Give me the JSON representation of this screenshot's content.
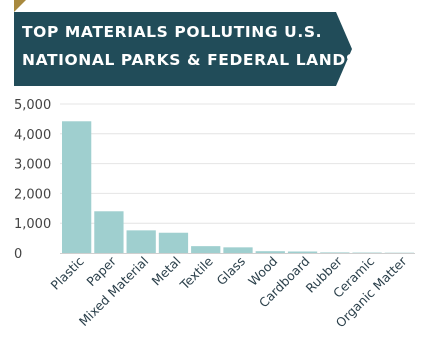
{
  "colors": {
    "banner": "#214c59",
    "corner": "#a8893e",
    "bar": "#9fcfcf",
    "grid": "#e4e4e4",
    "axis": "#cfcfcf"
  },
  "chart_data": {
    "type": "bar",
    "title_lines": [
      "TOP MATERIALS POLLUTING U.S.",
      "NATIONAL PARKS & FEDERAL LANDS"
    ],
    "categories": [
      "Plastic",
      "Paper",
      "Mixed Material",
      "Metal",
      "Textile",
      "Glass",
      "Wood",
      "Cardboard",
      "Rubber",
      "Ceramic",
      "Organic Matter"
    ],
    "values": [
      4420,
      1400,
      760,
      680,
      230,
      190,
      60,
      50,
      20,
      15,
      10
    ],
    "ylim": [
      0,
      5000
    ],
    "yticks": [
      "0",
      "1,000",
      "2,000",
      "3,000",
      "4,000",
      "5,000"
    ],
    "ytick_values": [
      0,
      1000,
      2000,
      3000,
      4000,
      5000
    ],
    "grid": true,
    "xlabel": "",
    "ylabel": ""
  }
}
